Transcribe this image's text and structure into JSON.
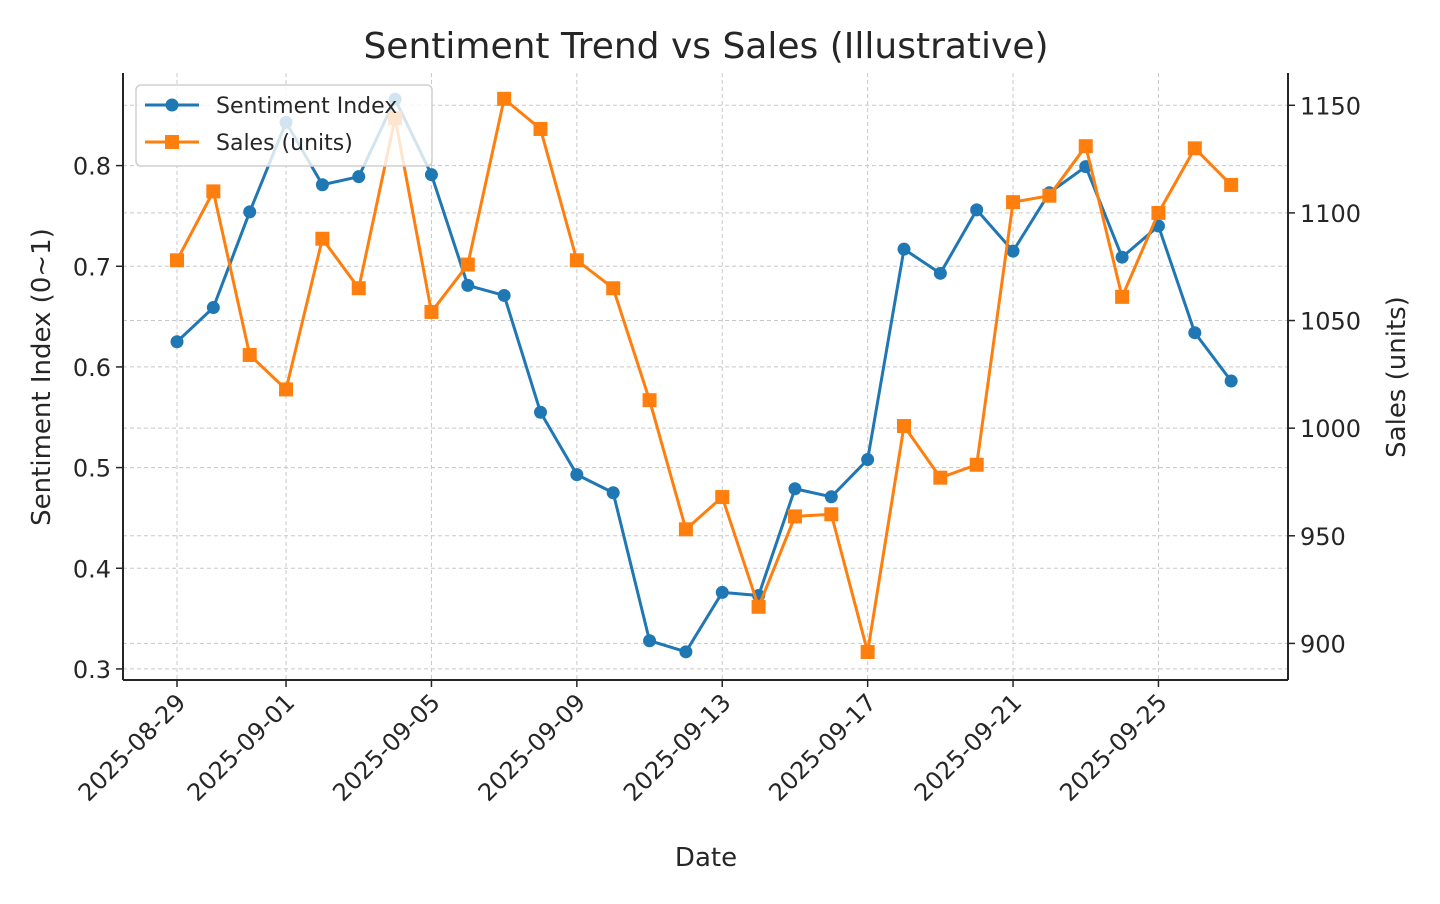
{
  "chart_data": {
    "type": "line",
    "title": "Sentiment Trend vs Sales (Illustrative)",
    "xlabel": "Date",
    "ylabel": "Sentiment Index (0~1)",
    "y2label": "Sales (units)",
    "ylim": [
      0.289,
      0.892
    ],
    "y2lim": [
      883,
      1165
    ],
    "yticks": [
      "0.3",
      "0.4",
      "0.5",
      "0.6",
      "0.7",
      "0.8"
    ],
    "y2ticks": [
      "900",
      "950",
      "1000",
      "1050",
      "1100",
      "1150"
    ],
    "xticks": [
      "2025-08-29",
      "2025-09-01",
      "2025-09-05",
      "2025-09-09",
      "2025-09-13",
      "2025-09-17",
      "2025-09-21",
      "2025-09-25"
    ],
    "grid": true,
    "legend": {
      "position": "top-left",
      "entries": [
        "Sentiment Index",
        "Sales (units)"
      ]
    },
    "x": [
      "2025-08-29",
      "2025-08-30",
      "2025-08-31",
      "2025-09-01",
      "2025-09-02",
      "2025-09-03",
      "2025-09-04",
      "2025-09-05",
      "2025-09-06",
      "2025-09-07",
      "2025-09-08",
      "2025-09-09",
      "2025-09-10",
      "2025-09-11",
      "2025-09-12",
      "2025-09-13",
      "2025-09-14",
      "2025-09-15",
      "2025-09-16",
      "2025-09-17",
      "2025-09-18",
      "2025-09-19",
      "2025-09-20",
      "2025-09-21",
      "2025-09-22",
      "2025-09-23",
      "2025-09-24",
      "2025-09-25",
      "2025-09-26",
      "2025-09-27"
    ],
    "series": [
      {
        "name": "Sentiment Index",
        "axis": "left",
        "color": "#1f77b4",
        "marker": "circle",
        "values": [
          0.625,
          0.659,
          0.754,
          0.843,
          0.781,
          0.789,
          0.866,
          0.791,
          0.681,
          0.671,
          0.555,
          0.493,
          0.475,
          0.328,
          0.317,
          0.376,
          0.373,
          0.479,
          0.471,
          0.508,
          0.717,
          0.693,
          0.756,
          0.715,
          0.773,
          0.799,
          0.709,
          0.74,
          0.634,
          0.586
        ]
      },
      {
        "name": "Sales (units)",
        "axis": "right",
        "color": "#ff7f0e",
        "marker": "square",
        "values": [
          1078,
          1110,
          1034,
          1018,
          1088,
          1065,
          1144,
          1054,
          1076,
          1153,
          1139,
          1078,
          1065,
          1013,
          953,
          968,
          917,
          959,
          960,
          896,
          1001,
          977,
          983,
          1105,
          1108,
          1131,
          1061,
          1100,
          1130,
          1113
        ]
      }
    ]
  }
}
